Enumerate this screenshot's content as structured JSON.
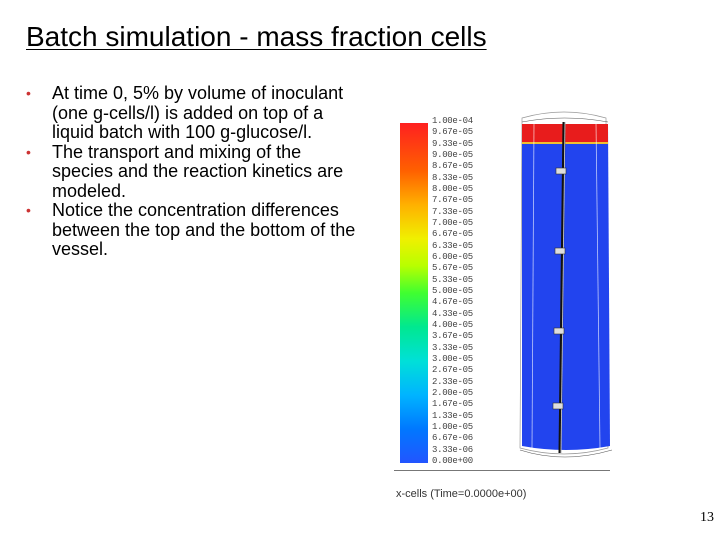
{
  "slide": {
    "title": "Batch simulation - mass fraction cells",
    "bullets": [
      "At time 0, 5% by volume of inoculant (one g-cells/l) is added on top of a liquid batch with 100 g-glucose/l.",
      "The transport and mixing of the species and the reaction kinetics are modeled.",
      "Notice the concentration differences between the top and the bottom of the vessel."
    ],
    "bullet_color": "#cc3333",
    "page_number": "13"
  },
  "figure": {
    "legend_labels": [
      "1.00e-04",
      "9.67e-05",
      "9.33e-05",
      "9.00e-05",
      "8.67e-05",
      "8.33e-05",
      "8.00e-05",
      "7.67e-05",
      "7.33e-05",
      "7.00e-05",
      "6.67e-05",
      "6.33e-05",
      "6.00e-05",
      "5.67e-05",
      "5.33e-05",
      "5.00e-05",
      "4.67e-05",
      "4.33e-05",
      "4.00e-05",
      "3.67e-05",
      "3.33e-05",
      "3.00e-05",
      "2.67e-05",
      "2.33e-05",
      "2.00e-05",
      "1.67e-05",
      "1.33e-05",
      "1.00e-05",
      "6.67e-06",
      "3.33e-06",
      "0.00e+00"
    ],
    "caption": "x-cells (Time=0.0000e+00)",
    "vessel_top_color": "#e81c1c",
    "vessel_body_color": "#2244ee"
  }
}
